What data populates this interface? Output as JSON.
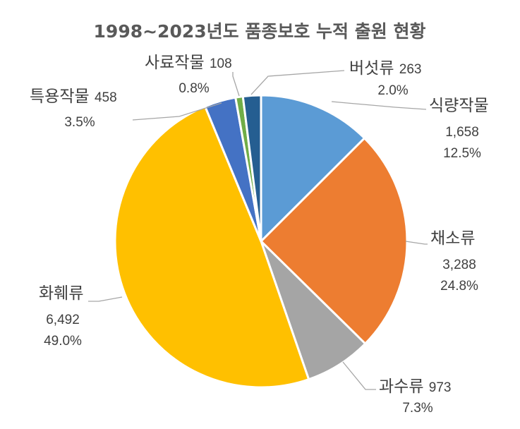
{
  "chart_data": {
    "type": "pie",
    "title": "1998~2023년도 품종보호 누적 출원 현황",
    "start_angle_deg": 0,
    "direction": "clockwise",
    "categories": [
      "식량작물",
      "채소류",
      "과수류",
      "화훼류",
      "특용작물",
      "사료작물",
      "버섯류"
    ],
    "values": [
      1658,
      3288,
      973,
      6492,
      458,
      108,
      263
    ],
    "value_labels": [
      "1,658",
      "3,288",
      "973",
      "6,492",
      "458",
      "108",
      "263"
    ],
    "percents": [
      "12.5%",
      "24.8%",
      "7.3%",
      "49.0%",
      "3.5%",
      "0.8%",
      "2.0%"
    ],
    "colors": [
      "#5b9bd5",
      "#ed7d31",
      "#a5a5a5",
      "#ffc000",
      "#4472c4",
      "#70ad47",
      "#255e91"
    ],
    "legend": "none"
  }
}
